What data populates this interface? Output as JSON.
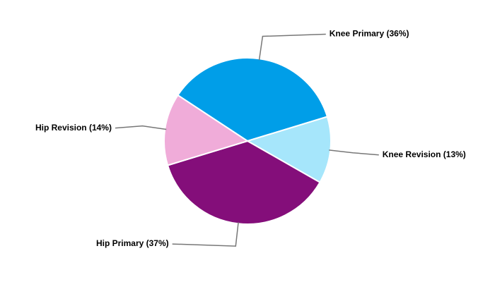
{
  "chart_data": {
    "type": "pie",
    "values": [
      36,
      13,
      37,
      14
    ],
    "value_labels": [
      "Knee Primary (36%)",
      "Knee Revision (13%)",
      "Hip Primary (37%)",
      "Hip Revision (14%)"
    ],
    "colors": [
      "#009ee8",
      "#a6e6fb",
      "#840e7a",
      "#f0acd9"
    ]
  }
}
